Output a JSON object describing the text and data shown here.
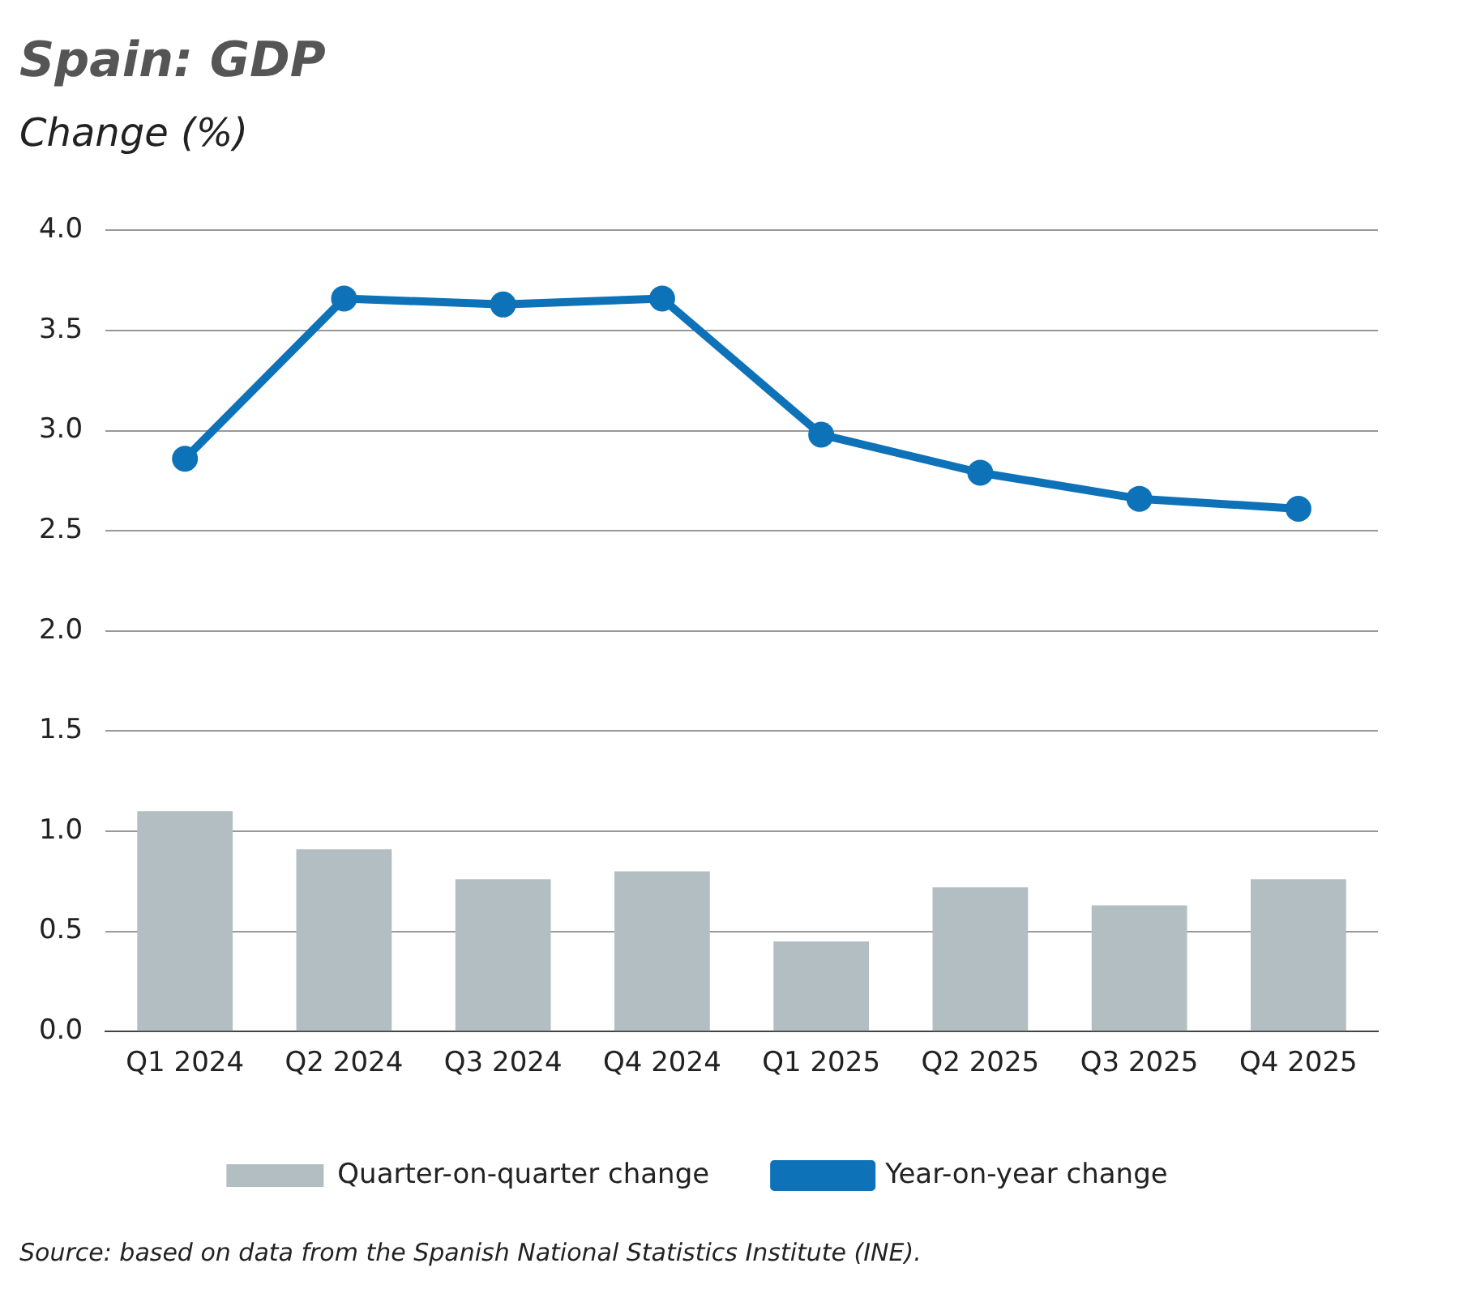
{
  "chart_data": {
    "type": "bar",
    "title": "Spain: GDP",
    "subtitle": "Change (%)",
    "categories": [
      "Q1 2024",
      "Q2 2024",
      "Q3 2024",
      "Q4 2024",
      "Q1 2025",
      "Q2 2025",
      "Q3 2025",
      "Q4 2025"
    ],
    "series": [
      {
        "name": "Quarter-on-quarter change",
        "color": "#b3bec2",
        "values": [
          1.1,
          0.91,
          0.76,
          0.8,
          0.45,
          0.72,
          0.63,
          0.76
        ]
      },
      {
        "name": "Year-on-year change",
        "type": "line",
        "color": "#0e72b8",
        "values": [
          2.86,
          3.66,
          3.63,
          3.66,
          2.98,
          2.79,
          2.66,
          2.61
        ]
      }
    ],
    "ylim": [
      0,
      4
    ],
    "yticks": [
      {
        "value": 0,
        "label": "0.0"
      },
      {
        "value": 0.5,
        "label": "0.5"
      },
      {
        "value": 1,
        "label": "1.0"
      },
      {
        "value": 1.5,
        "label": "1.5"
      },
      {
        "value": 2,
        "label": "2.0"
      },
      {
        "value": 2.5,
        "label": "2.5"
      },
      {
        "value": 3,
        "label": "3.0"
      },
      {
        "value": 3.5,
        "label": "3.5"
      },
      {
        "value": 4,
        "label": "4.0"
      }
    ],
    "grid": "y",
    "legend": "bottom",
    "marker": "circle",
    "line_style": "solid",
    "annotations": [
      "Source: based on data from the Spanish National Statistics Institute (INE)."
    ]
  }
}
